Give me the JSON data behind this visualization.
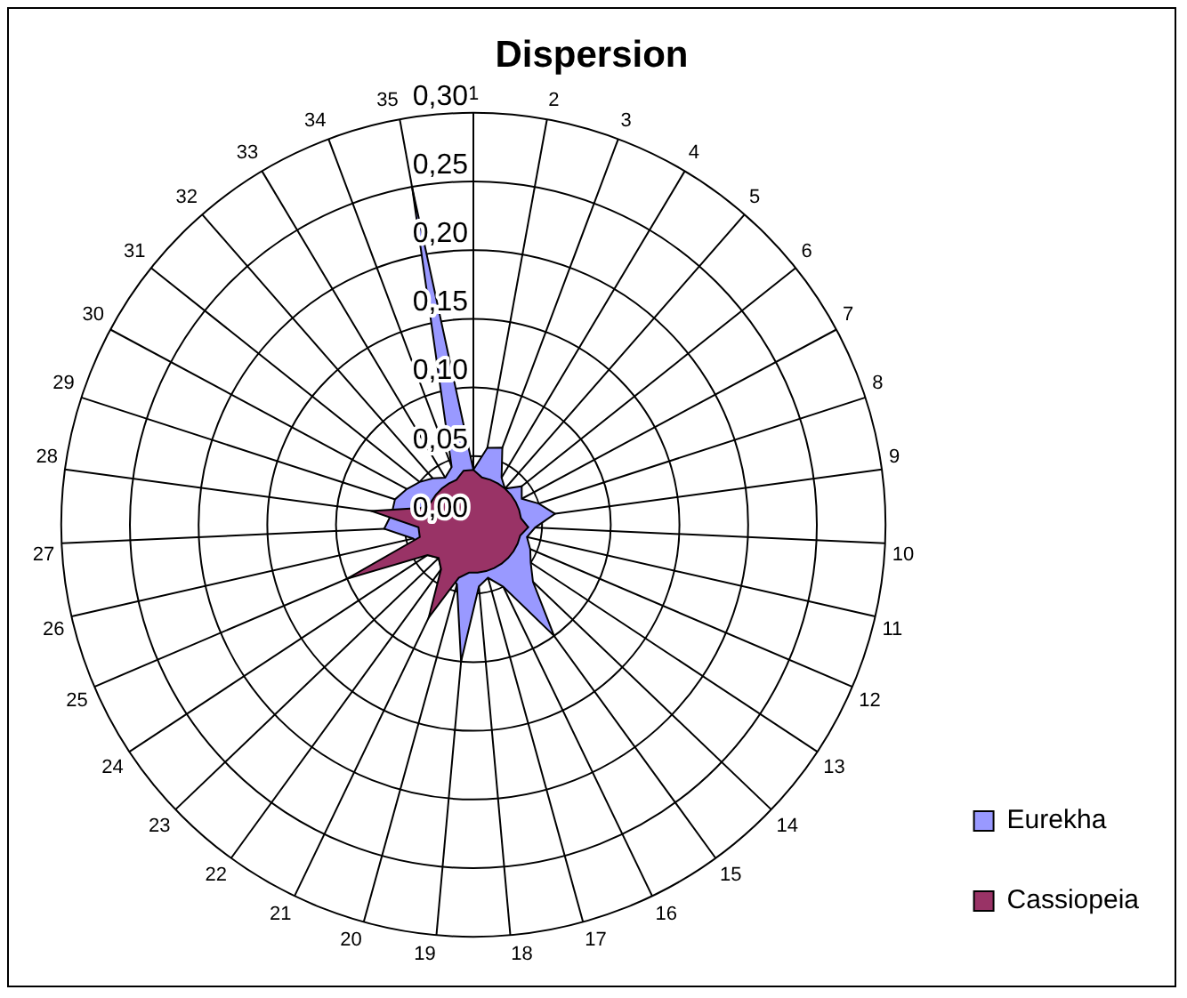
{
  "chart_data": {
    "type": "radar",
    "title": "Dispersion",
    "categories": [
      "1",
      "2",
      "3",
      "4",
      "5",
      "6",
      "7",
      "8",
      "9",
      "10",
      "11",
      "12",
      "13",
      "14",
      "15",
      "16",
      "17",
      "18",
      "19",
      "20",
      "21",
      "22",
      "23",
      "24",
      "25",
      "26",
      "27",
      "28",
      "29",
      "30",
      "31",
      "32",
      "33",
      "34",
      "35"
    ],
    "series": [
      {
        "name": "Eurekha",
        "color": "#9999ff",
        "values": [
          0.04,
          0.057,
          0.06,
          0.04,
          0.035,
          0.045,
          0.04,
          0.05,
          0.06,
          0.045,
          0.04,
          0.045,
          0.05,
          0.06,
          0.1,
          0.05,
          0.04,
          0.045,
          0.1,
          0.045,
          0.04,
          0.04,
          0.035,
          0.04,
          0.04,
          0.045,
          0.065,
          0.06,
          0.06,
          0.055,
          0.05,
          0.045,
          0.04,
          0.045,
          0.25
        ]
      },
      {
        "name": "Cassiopeia",
        "color": "#993366",
        "values": [
          0.04,
          0.035,
          0.035,
          0.035,
          0.035,
          0.035,
          0.035,
          0.035,
          0.035,
          0.04,
          0.035,
          0.035,
          0.035,
          0.035,
          0.035,
          0.035,
          0.035,
          0.035,
          0.035,
          0.04,
          0.075,
          0.04,
          0.035,
          0.04,
          0.1,
          0.04,
          0.04,
          0.075,
          0.04,
          0.035,
          0.035,
          0.035,
          0.035,
          0.035,
          0.04
        ]
      }
    ],
    "ylim": [
      0,
      0.3
    ],
    "yticks": [
      {
        "value": 0,
        "label": "0,00"
      },
      {
        "value": 0.05,
        "label": "0,05"
      },
      {
        "value": 0.1,
        "label": "0,10"
      },
      {
        "value": 0.15,
        "label": "0,15"
      },
      {
        "value": 0.2,
        "label": "0,20"
      },
      {
        "value": 0.25,
        "label": "0,25"
      },
      {
        "value": 0.3,
        "label": "0,30"
      }
    ],
    "grid": true,
    "legend": "bottom right",
    "marker": "none"
  }
}
